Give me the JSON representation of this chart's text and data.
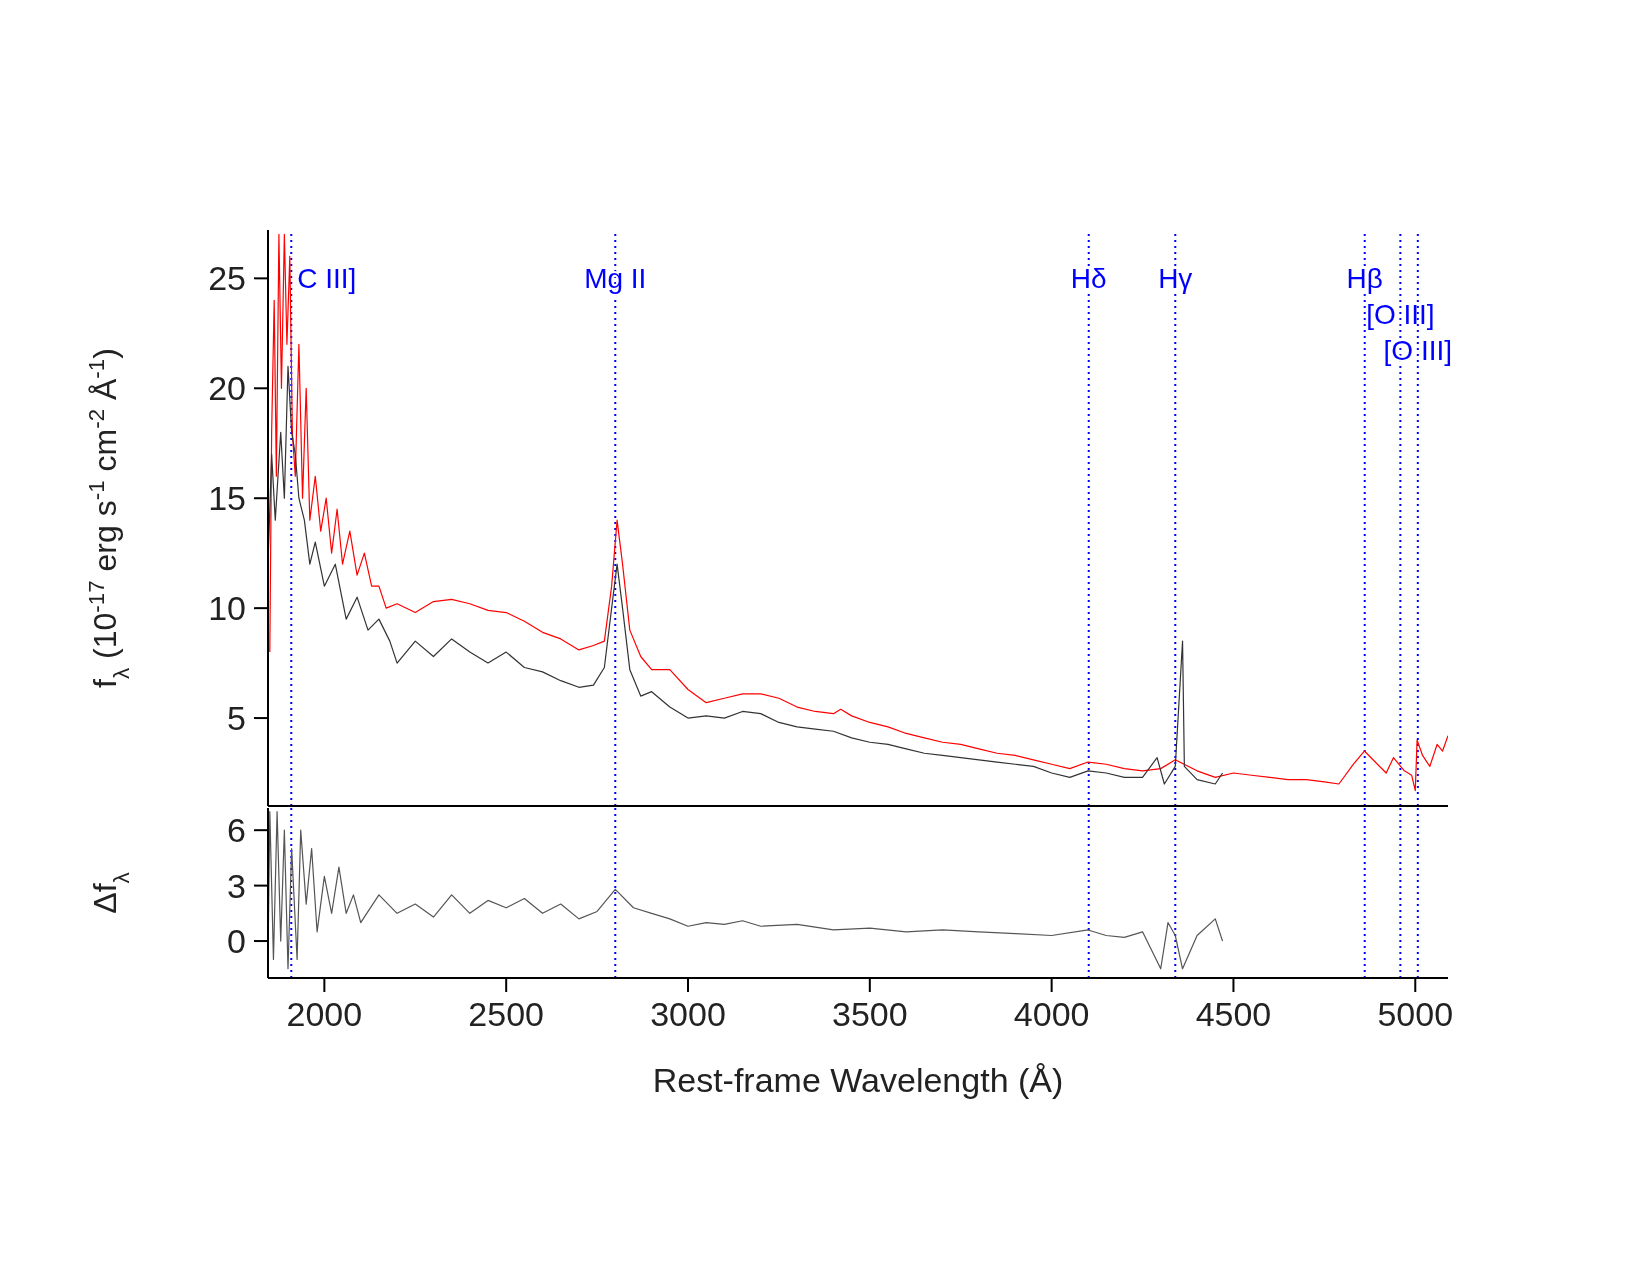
{
  "chart_data": [
    {
      "type": "line",
      "ylabel": "f$_{λ}$ (10$^{-17}$ erg s$^{-1}$ cm$^{-2}$ Å$^{-1}$)",
      "xlim": [
        1845,
        5090
      ],
      "xticks": [
        2000,
        2500,
        3000,
        3500,
        4000,
        4500,
        5000
      ],
      "ylim": [
        1,
        27.2
      ],
      "yticks": [
        5,
        10,
        15,
        20,
        25
      ],
      "tick_labels": "y",
      "marker": "none",
      "line_style": "solid",
      "ref_lines": [
        {
          "axis": "x",
          "value": 1909,
          "label": "C III]",
          "color": "#0000ff",
          "line_style": "dotted"
        },
        {
          "axis": "x",
          "value": 2800,
          "label": "Mg II",
          "color": "#0000ff",
          "line_style": "dotted"
        },
        {
          "axis": "x",
          "value": 4102,
          "label": "Hδ",
          "color": "#0000ff",
          "line_style": "dotted"
        },
        {
          "axis": "x",
          "value": 4340,
          "label": "Hγ",
          "color": "#0000ff",
          "line_style": "dotted"
        },
        {
          "axis": "x",
          "value": 4861,
          "label": "Hβ",
          "color": "#0000ff",
          "line_style": "dotted"
        },
        {
          "axis": "x",
          "value": 4959,
          "label": "[O III]",
          "color": "#0000ff",
          "line_style": "dotted"
        },
        {
          "axis": "x",
          "value": 5007,
          "label": "[O III]",
          "color": "#0000ff",
          "line_style": "dotted"
        }
      ],
      "series": [
        {
          "color": "#ff0000",
          "x": [
            1850,
            1855,
            1862,
            1868,
            1875,
            1882,
            1890,
            1897,
            1905,
            1912,
            1920,
            1930,
            1940,
            1950,
            1960,
            1975,
            1990,
            2005,
            2020,
            2035,
            2050,
            2070,
            2090,
            2110,
            2130,
            2150,
            2170,
            2200,
            2250,
            2300,
            2350,
            2400,
            2450,
            2500,
            2550,
            2600,
            2650,
            2700,
            2740,
            2770,
            2790,
            2805,
            2820,
            2840,
            2870,
            2900,
            2950,
            3000,
            3050,
            3100,
            3150,
            3200,
            3250,
            3300,
            3350,
            3400,
            3420,
            3450,
            3500,
            3550,
            3600,
            3650,
            3700,
            3750,
            3800,
            3850,
            3900,
            3950,
            4000,
            4050,
            4100,
            4150,
            4200,
            4250,
            4300,
            4340,
            4400,
            4450,
            4500,
            4550,
            4600,
            4650,
            4700,
            4750,
            4790,
            4830,
            4860,
            4890,
            4920,
            4940,
            4970,
            4990,
            5000,
            5005,
            5020,
            5040,
            5060,
            5075,
            5090
          ],
          "values": [
            8,
            18,
            24,
            16,
            27,
            20,
            27,
            22,
            26,
            18,
            16,
            22,
            15,
            20,
            14,
            16,
            13.5,
            15,
            12.5,
            14.5,
            12,
            13.5,
            11.5,
            12.5,
            11,
            11,
            10,
            10.2,
            9.8,
            10.3,
            10.4,
            10.2,
            9.9,
            9.8,
            9.4,
            8.9,
            8.6,
            8.1,
            8.3,
            8.5,
            11,
            14,
            12,
            9,
            7.8,
            7.2,
            7.2,
            6.3,
            5.7,
            5.9,
            6.1,
            6.1,
            5.9,
            5.5,
            5.3,
            5.2,
            5.4,
            5.1,
            4.8,
            4.6,
            4.3,
            4.1,
            3.9,
            3.8,
            3.6,
            3.4,
            3.3,
            3.1,
            2.9,
            2.7,
            3,
            2.9,
            2.7,
            2.6,
            2.7,
            3.1,
            2.6,
            2.3,
            2.5,
            2.4,
            2.3,
            2.2,
            2.2,
            2.1,
            2,
            2.9,
            3.5,
            3,
            2.5,
            3.2,
            2.6,
            2.4,
            1.7,
            4,
            3.3,
            2.8,
            3.8,
            3.5,
            4.2
          ]
        },
        {
          "color": "#333333",
          "x": [
            1845,
            1855,
            1865,
            1880,
            1890,
            1900,
            1910,
            1920,
            1930,
            1945,
            1960,
            1975,
            2000,
            2030,
            2060,
            2090,
            2120,
            2150,
            2180,
            2200,
            2250,
            2300,
            2350,
            2400,
            2450,
            2500,
            2550,
            2600,
            2650,
            2700,
            2740,
            2770,
            2790,
            2805,
            2820,
            2840,
            2870,
            2900,
            2950,
            3000,
            3050,
            3100,
            3150,
            3200,
            3250,
            3300,
            3350,
            3400,
            3450,
            3500,
            3550,
            3600,
            3650,
            3700,
            3750,
            3800,
            3850,
            3900,
            3950,
            4000,
            4050,
            4100,
            4150,
            4200,
            4250,
            4290,
            4310,
            4340,
            4360,
            4365,
            4400,
            4450,
            4470
          ],
          "values": [
            12,
            17,
            14,
            18,
            15,
            21,
            18,
            17,
            15,
            14,
            12,
            13,
            11,
            12,
            9.5,
            10.5,
            9,
            9.5,
            8.5,
            7.5,
            8.5,
            7.8,
            8.6,
            8,
            7.5,
            8,
            7.3,
            7.1,
            6.7,
            6.4,
            6.5,
            7.3,
            10,
            12,
            10,
            7.2,
            6,
            6.2,
            5.5,
            5,
            5.1,
            5,
            5.3,
            5.2,
            4.8,
            4.6,
            4.5,
            4.4,
            4.1,
            3.9,
            3.8,
            3.6,
            3.4,
            3.3,
            3.2,
            3.1,
            3,
            2.9,
            2.8,
            2.5,
            2.3,
            2.6,
            2.5,
            2.3,
            2.3,
            3.2,
            2,
            2.8,
            8.5,
            2.8,
            2.2,
            2,
            2.5
          ]
        }
      ]
    },
    {
      "type": "line",
      "xlabel": "Rest-frame Wavelength  (Å)",
      "ylabel": "Δf$_{λ}$",
      "xlim": [
        1845,
        5090
      ],
      "xticks": [
        2000,
        2500,
        3000,
        3500,
        4000,
        4500,
        5000
      ],
      "ylim": [
        -2,
        7.2
      ],
      "yticks": [
        0,
        3,
        6
      ],
      "marker": "none",
      "line_style": "solid",
      "ref_lines": [
        {
          "axis": "x",
          "value": 1909,
          "color": "#0000ff",
          "line_style": "dotted"
        },
        {
          "axis": "x",
          "value": 2800,
          "color": "#0000ff",
          "line_style": "dotted"
        },
        {
          "axis": "x",
          "value": 4102,
          "color": "#0000ff",
          "line_style": "dotted"
        },
        {
          "axis": "x",
          "value": 4340,
          "color": "#0000ff",
          "line_style": "dotted"
        },
        {
          "axis": "x",
          "value": 4861,
          "color": "#0000ff",
          "line_style": "dotted"
        },
        {
          "axis": "x",
          "value": 4959,
          "color": "#0000ff",
          "line_style": "dotted"
        },
        {
          "axis": "x",
          "value": 5007,
          "color": "#0000ff",
          "line_style": "dotted"
        }
      ],
      "series": [
        {
          "color": "#555555",
          "x": [
            1845,
            1850,
            1860,
            1870,
            1880,
            1890,
            1900,
            1910,
            1925,
            1935,
            1950,
            1965,
            1980,
            2000,
            2020,
            2040,
            2060,
            2080,
            2100,
            2150,
            2200,
            2250,
            2300,
            2350,
            2400,
            2450,
            2500,
            2550,
            2600,
            2650,
            2700,
            2750,
            2800,
            2850,
            2900,
            2950,
            3000,
            3050,
            3100,
            3150,
            3200,
            3300,
            3400,
            3500,
            3600,
            3700,
            3800,
            3900,
            4000,
            4100,
            4150,
            4200,
            4250,
            4300,
            4320,
            4340,
            4360,
            4400,
            4450,
            4470
          ],
          "values": [
            -1,
            7,
            -1,
            7,
            0,
            6,
            -1.5,
            5,
            -1,
            6,
            2,
            5,
            0.5,
            3.5,
            1.5,
            4,
            1.5,
            2.5,
            1,
            2.5,
            1.5,
            2,
            1.3,
            2.5,
            1.5,
            2.2,
            1.8,
            2.3,
            1.5,
            2,
            1.2,
            1.6,
            2.8,
            1.8,
            1.5,
            1.2,
            0.8,
            1,
            0.9,
            1.1,
            0.8,
            0.9,
            0.6,
            0.7,
            0.5,
            0.6,
            0.5,
            0.4,
            0.3,
            0.6,
            0.3,
            0.2,
            0.5,
            -1.5,
            1,
            0.3,
            -1.5,
            0.3,
            1.2,
            0
          ]
        }
      ]
    }
  ]
}
